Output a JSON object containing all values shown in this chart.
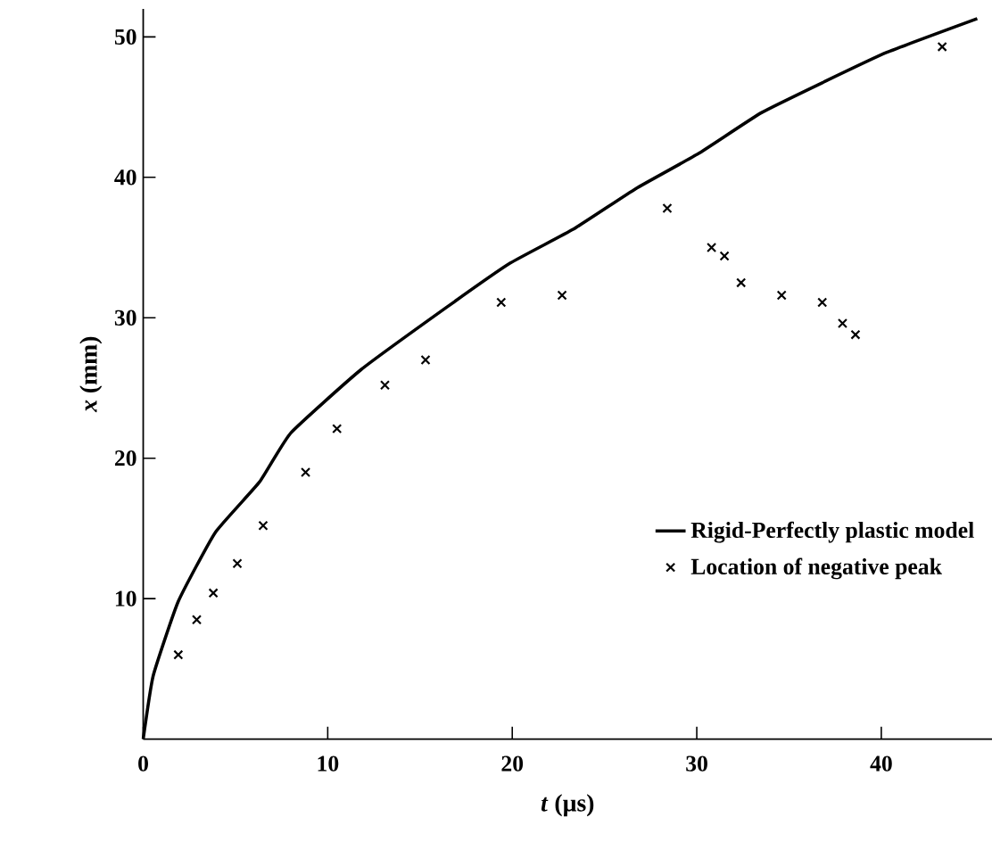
{
  "chart_data": {
    "type": "scatter",
    "xlabel": "*t* (µs)",
    "ylabel": "*x* (mm)",
    "xlim": [
      0,
      46
    ],
    "ylim": [
      0,
      52
    ],
    "xticks": [
      0,
      10,
      20,
      30,
      40
    ],
    "yticks": [
      10,
      20,
      30,
      40,
      50
    ],
    "grid": false,
    "legend": "right",
    "series": [
      {
        "name": "Rigid-Perfectly plastic model",
        "type": "line",
        "color": "#000000",
        "marker": "none",
        "line_style": "solid",
        "x": [
          0,
          0.54,
          1.9,
          3.9,
          6.3,
          8.0,
          11.8,
          16.5,
          19.9,
          23.3,
          26.7,
          30.1,
          33.5,
          36.9,
          40.3,
          45.2
        ],
        "values": [
          0,
          4.5,
          9.8,
          14.7,
          18.3,
          21.8,
          26.3,
          30.8,
          33.9,
          36.3,
          39.2,
          41.7,
          44.6,
          46.8,
          48.9,
          51.3
        ]
      },
      {
        "name": "Location of negative peak",
        "type": "scatter",
        "color": "#000000",
        "marker": "cross",
        "x": [
          1.9,
          2.9,
          3.8,
          5.1,
          6.5,
          8.8,
          10.5,
          13.1,
          15.3,
          19.4,
          22.7,
          28.4,
          30.8,
          31.5,
          32.4,
          34.6,
          36.8,
          37.9,
          38.6,
          43.3
        ],
        "values": [
          6.0,
          8.5,
          10.4,
          12.5,
          15.2,
          19.0,
          22.1,
          25.2,
          27.0,
          31.1,
          31.6,
          37.8,
          35.0,
          34.4,
          32.5,
          31.6,
          31.1,
          29.6,
          28.8,
          49.3
        ]
      }
    ]
  }
}
